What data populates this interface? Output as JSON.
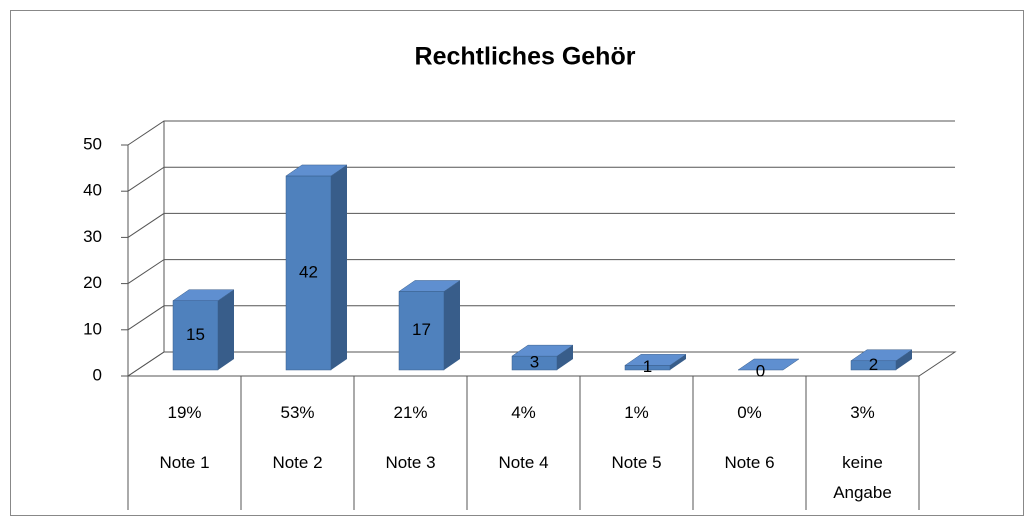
{
  "chart_data": {
    "type": "bar3d",
    "title": "Rechtliches Gehör",
    "categories": [
      "Note 1",
      "Note 2",
      "Note 3",
      "Note 4",
      "Note 5",
      "Note 6",
      "keine Angabe"
    ],
    "values": [
      15,
      42,
      17,
      3,
      1,
      0,
      2
    ],
    "percent_row": [
      "19%",
      "53%",
      "21%",
      "4%",
      "1%",
      "0%",
      "3%"
    ],
    "color": "#4f81bd",
    "ylim": [
      0,
      50
    ],
    "yticks": [
      0,
      10,
      20,
      30,
      40,
      50
    ],
    "grid": true
  }
}
